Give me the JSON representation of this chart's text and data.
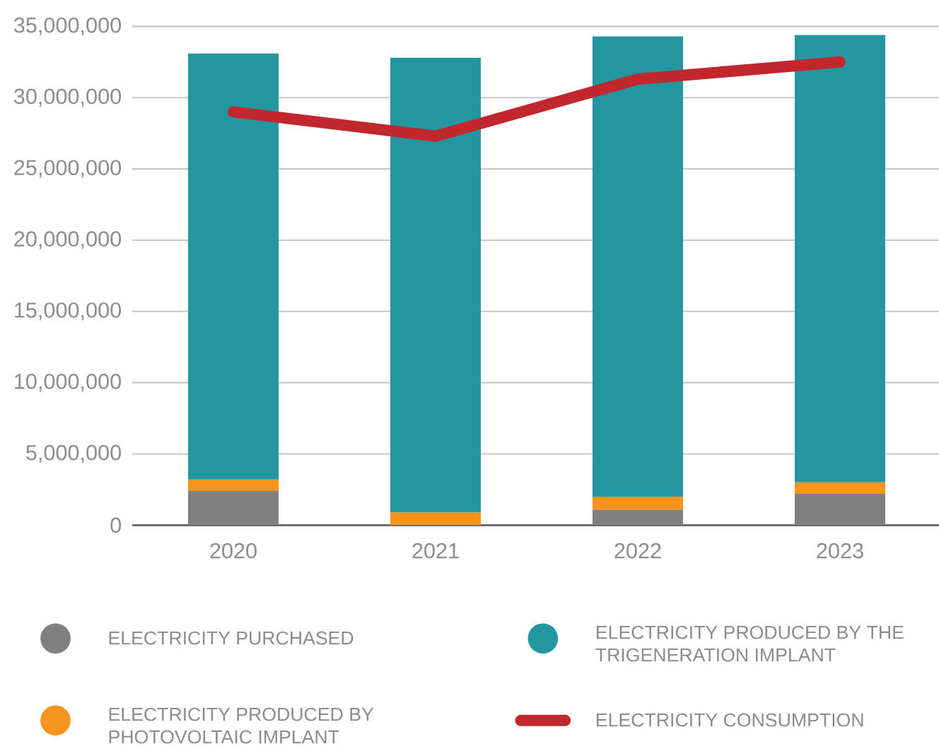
{
  "chart_data": {
    "type": "bar",
    "stacked": true,
    "categories": [
      "2020",
      "2021",
      "2022",
      "2023"
    ],
    "series": [
      {
        "name": "ELECTRICITY PURCHASED",
        "color": "#808080",
        "values": [
          2400000,
          0,
          1100000,
          2200000
        ]
      },
      {
        "name": "ELECTRICITY PRODUCED BY PHOTOVOLTAIC IMPLANT",
        "color": "#f7941d",
        "values": [
          800000,
          900000,
          900000,
          800000
        ]
      },
      {
        "name": "ELECTRICITY PRODUCED BY THE TRIGENERATION IMPLANT",
        "color": "#2496a2",
        "values": [
          29900000,
          31900000,
          32300000,
          31400000
        ]
      },
      {
        "name": "ELECTRICITY CONSUMPTION",
        "type": "line",
        "color": "#c1272d",
        "values": [
          29000000,
          27300000,
          31300000,
          32500000
        ]
      }
    ],
    "ylim": [
      0,
      35000000
    ],
    "yticks": [
      0,
      {
        "value": 5000000,
        "label": "5,000,000"
      },
      {
        "value": 10000000,
        "label": "10,000,000"
      },
      {
        "value": 15000000,
        "label": "15,000,000"
      },
      {
        "value": 20000000,
        "label": "20,000,000"
      },
      {
        "value": 25000000,
        "label": "25,000,000"
      },
      {
        "value": 30000000,
        "label": "30,000,000"
      },
      {
        "value": 35000000,
        "label": "35,000,000"
      }
    ],
    "grid": "y",
    "legend": "bottom"
  }
}
